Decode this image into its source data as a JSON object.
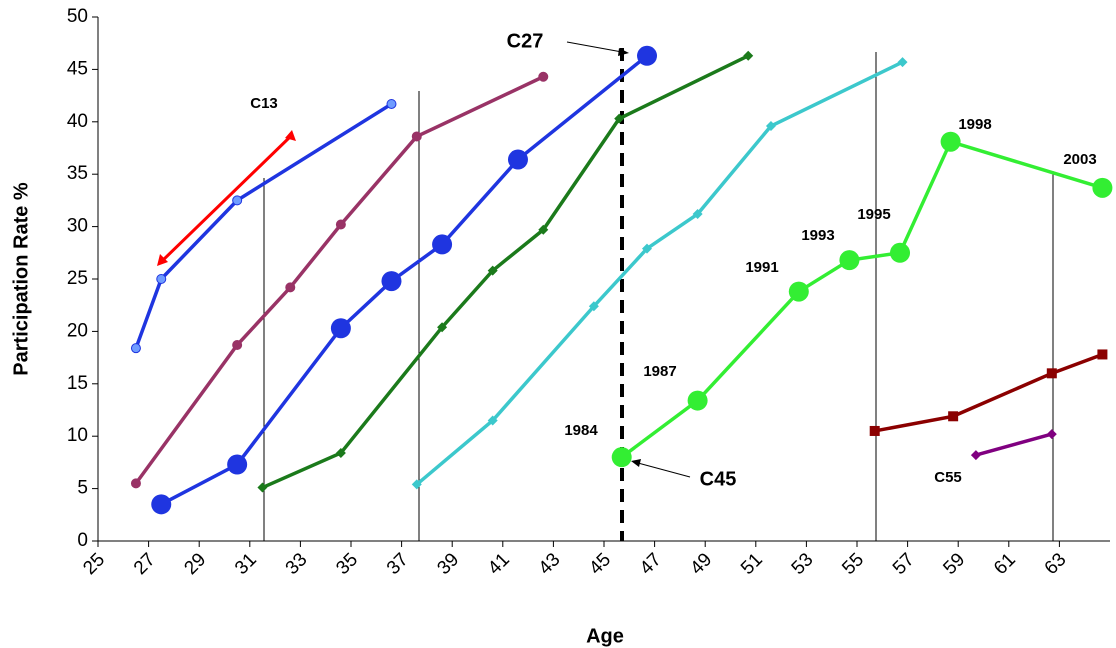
{
  "chart_data": {
    "type": "line",
    "xlabel": "Age",
    "ylabel": "Participation Rate %",
    "xlim": [
      25,
      65
    ],
    "ylim": [
      0,
      50
    ],
    "xticks": [
      25,
      27,
      29,
      31,
      33,
      35,
      37,
      39,
      41,
      43,
      45,
      47,
      49,
      51,
      53,
      55,
      57,
      59,
      61,
      63
    ],
    "yticks": [
      0,
      5,
      10,
      15,
      20,
      25,
      30,
      35,
      40,
      45,
      50
    ],
    "series": [
      {
        "color": "#1f35e0",
        "marker": "small-circle",
        "x": [
          26.5,
          27.5,
          30.5,
          36.6
        ],
        "values": [
          18.4,
          25.0,
          32.5,
          41.7
        ]
      },
      {
        "color": "#993366",
        "marker": "small-circle",
        "x": [
          26.5,
          30.5,
          32.6,
          34.6,
          37.6,
          42.6
        ],
        "values": [
          5.5,
          18.7,
          24.2,
          30.2,
          38.6,
          44.3
        ]
      },
      {
        "color": "#1f35e0",
        "marker": "large-circle",
        "x": [
          27.5,
          30.5,
          34.6,
          36.6,
          38.6,
          41.6,
          46.7
        ],
        "values": [
          3.5,
          7.3,
          20.3,
          24.8,
          28.3,
          36.4,
          46.3
        ]
      },
      {
        "color": "#1b7a1b",
        "marker": "diamond",
        "x": [
          31.5,
          34.6,
          38.6,
          40.6,
          42.6,
          45.6,
          50.7
        ],
        "values": [
          5.1,
          8.4,
          20.4,
          25.8,
          29.7,
          40.3,
          46.3
        ]
      },
      {
        "color": "#3cc8cc",
        "marker": "diamond",
        "x": [
          37.6,
          40.6,
          44.6,
          46.7,
          48.7,
          51.6,
          56.8
        ],
        "values": [
          5.4,
          11.5,
          22.4,
          27.9,
          31.2,
          39.6,
          45.7
        ]
      },
      {
        "color": "#33ee33",
        "marker": "large-circle",
        "x": [
          45.7,
          48.7,
          52.7,
          54.7,
          56.7,
          58.7,
          64.7
        ],
        "values": [
          8.0,
          13.4,
          23.8,
          26.8,
          27.5,
          38.1,
          33.7
        ]
      },
      {
        "color": "#8b0000",
        "marker": "square",
        "x": [
          55.7,
          58.8,
          62.7,
          64.7
        ],
        "values": [
          10.5,
          11.9,
          16.0,
          17.8
        ]
      },
      {
        "color": "#800080",
        "marker": "diamond",
        "x": [
          59.7,
          62.7
        ],
        "values": [
          8.2,
          10.2
        ]
      }
    ],
    "annotations": [
      "C13",
      "C27",
      "C45",
      "C55",
      "1984",
      "1987",
      "1991",
      "1993",
      "1995",
      "1998",
      "2003"
    ]
  }
}
